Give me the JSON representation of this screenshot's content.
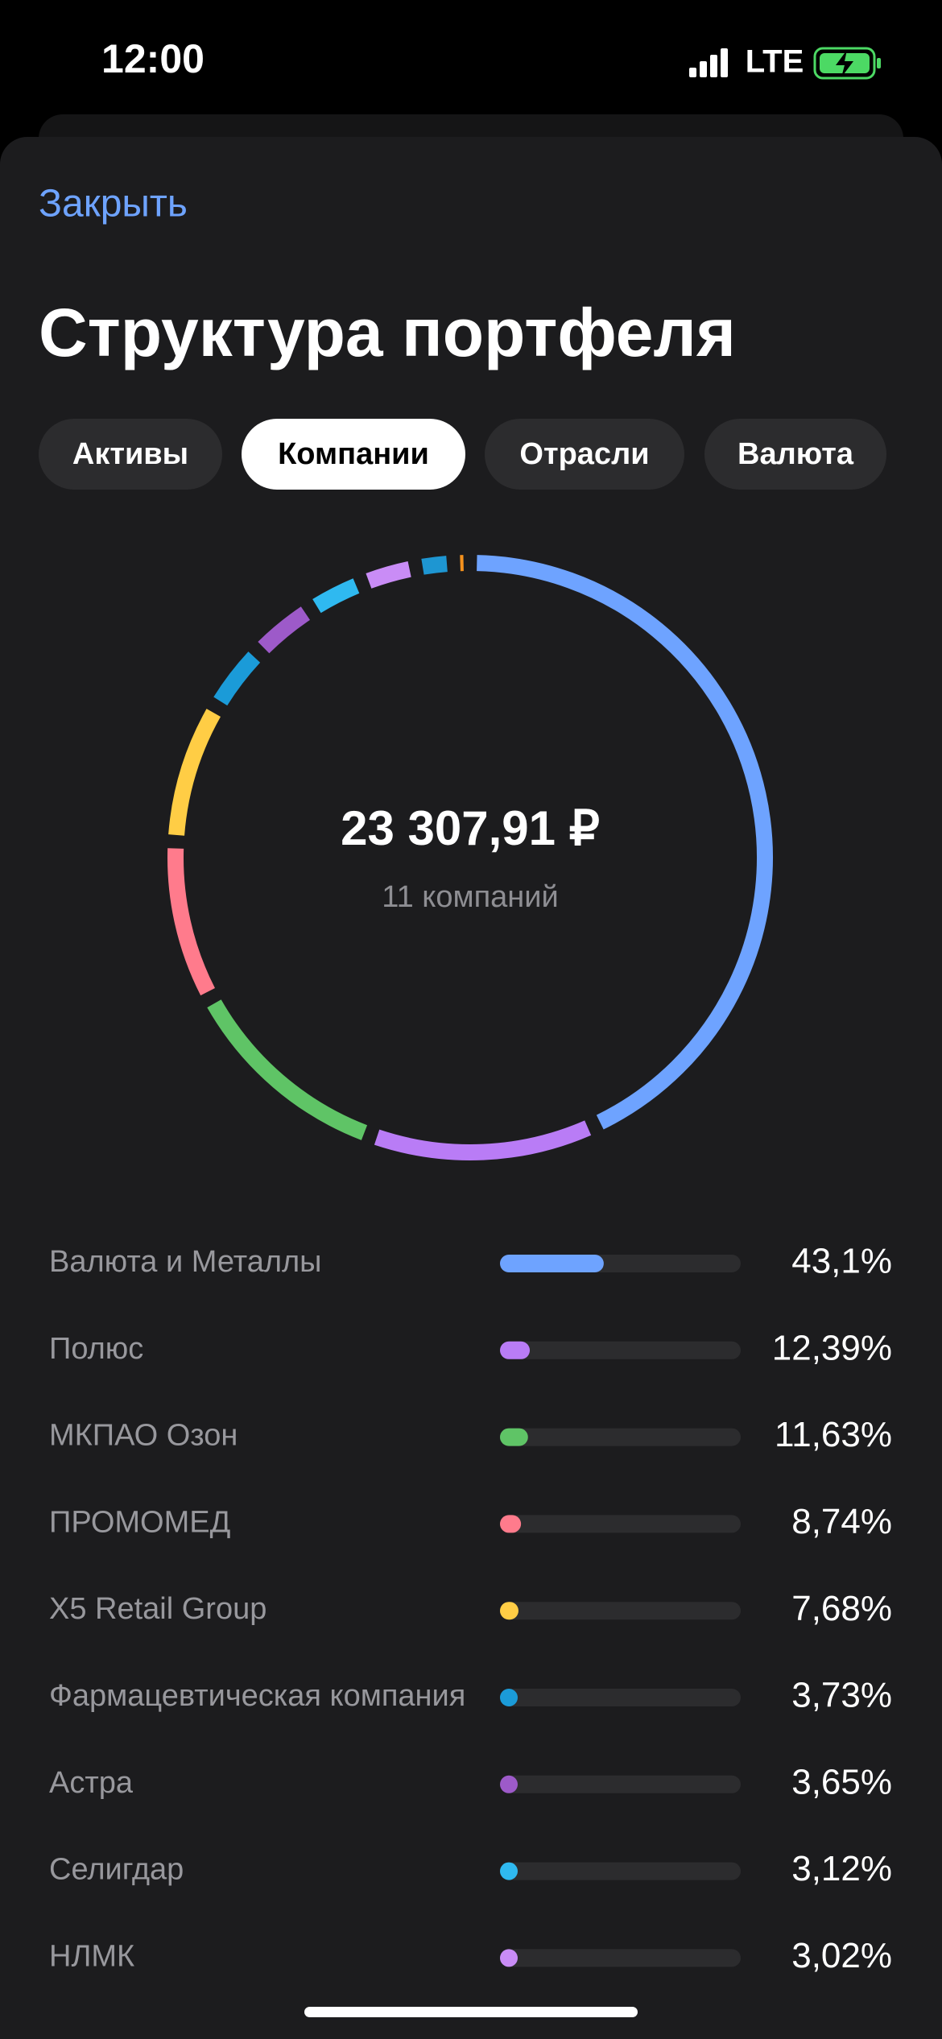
{
  "status_bar": {
    "time": "12:00",
    "network": "LTE"
  },
  "header": {
    "close": "Закрыть",
    "title": "Структура портфеля"
  },
  "tabs": [
    "Активы",
    "Компании",
    "Отрасли",
    "Валюта"
  ],
  "active_tab": 1,
  "chart_data": {
    "type": "donut",
    "center_value": "23 307,91 ₽",
    "center_label": "11 компаний",
    "categories": [
      "Валюта и Металлы",
      "Полюс",
      "МКПАО Озон",
      "ПРОМОМЕД",
      "X5 Retail Group",
      "Фармацевтическая компания",
      "Астра",
      "Селигдар",
      "НЛМК",
      null,
      null
    ],
    "values": [
      43.1,
      12.39,
      11.63,
      8.74,
      7.68,
      3.73,
      3.65,
      3.12,
      3.02,
      2.04,
      0.9
    ],
    "value_labels": [
      "43,1%",
      "12,39%",
      "11,63%",
      "8,74%",
      "7,68%",
      "3,73%",
      "3,65%",
      "3,12%",
      "3,02%",
      null,
      null
    ],
    "colors": [
      "#6ea3ff",
      "#b97cf6",
      "#5fc466",
      "#ff7b8c",
      "#ffcd45",
      "#1b9bd8",
      "#9d5ac9",
      "#2fb9f0",
      "#c98cf6",
      "#1e96d2",
      "#f5921d"
    ]
  }
}
